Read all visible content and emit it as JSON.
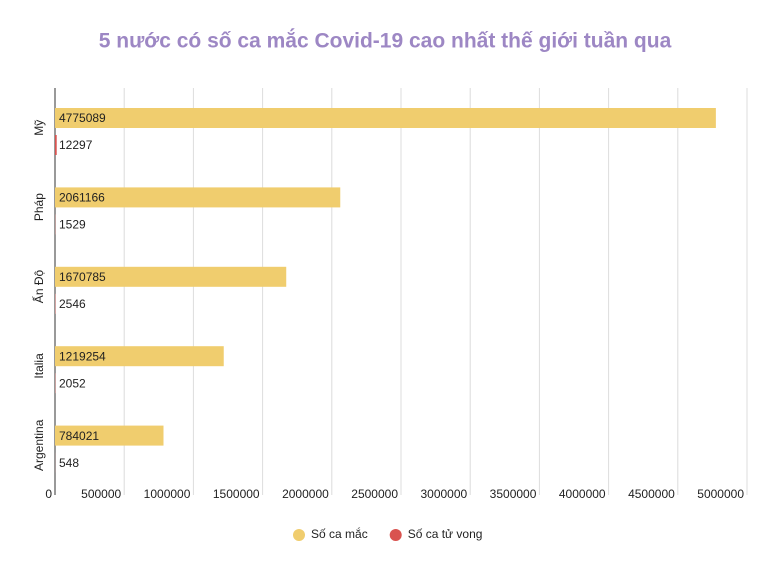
{
  "chart_data": {
    "type": "hbar",
    "title": "5 nước có số ca mắc Covid-19 cao nhất thế giới tuần qua",
    "categories": [
      "Mỹ",
      "Pháp",
      "Ấn Độ",
      "Italia",
      "Argentina"
    ],
    "series": [
      {
        "name": "Số ca mắc",
        "color": "#f0cd6e",
        "values": [
          4775089,
          2061166,
          1670785,
          1219254,
          784021
        ]
      },
      {
        "name": "Số ca tử vong",
        "color": "#d9534f",
        "values": [
          12297,
          1529,
          2546,
          2052,
          548
        ]
      }
    ],
    "xlim": [
      0,
      5000000
    ],
    "xticks": [
      0,
      500000,
      1000000,
      1500000,
      2000000,
      2500000,
      3000000,
      3500000,
      4000000,
      4500000,
      5000000
    ],
    "grid": true,
    "legend": "bottom"
  }
}
